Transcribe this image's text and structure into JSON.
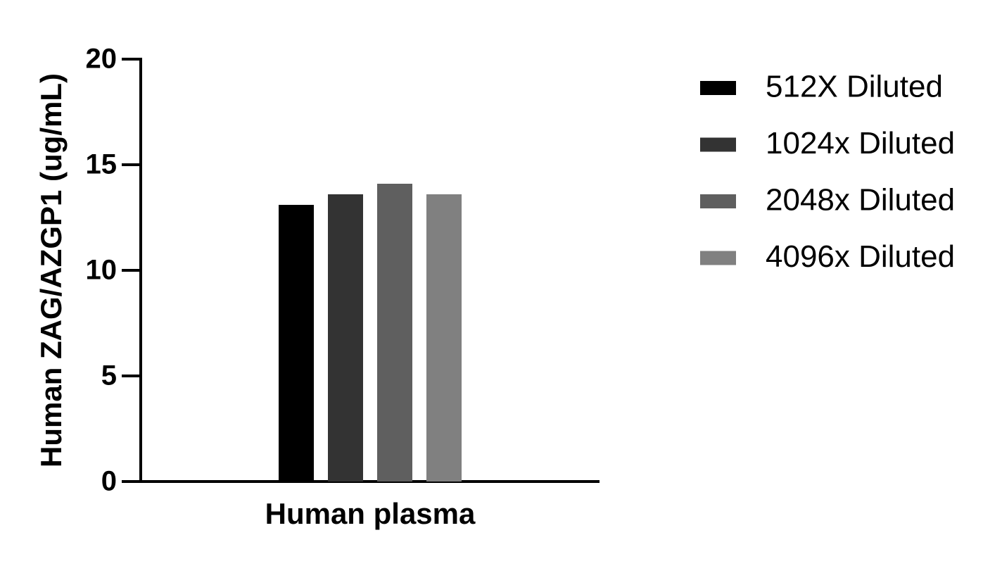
{
  "chart_data": {
    "type": "bar",
    "ylabel": "Human ZAG/AZGP1 (ug/mL)",
    "categories": [
      "Human plasma"
    ],
    "series": [
      {
        "name": "512X Diluted",
        "color": "#000000",
        "values": [
          13.1
        ]
      },
      {
        "name": "1024x Diluted",
        "color": "#333333",
        "values": [
          13.6
        ]
      },
      {
        "name": "2048x Diluted",
        "color": "#5f5f5f",
        "values": [
          14.1
        ]
      },
      {
        "name": "4096x Diluted",
        "color": "#808080",
        "values": [
          13.6
        ]
      }
    ],
    "ylim": [
      0,
      20
    ],
    "yticks": [
      0,
      5,
      10,
      15,
      20
    ],
    "grid": false,
    "legend": "right"
  }
}
